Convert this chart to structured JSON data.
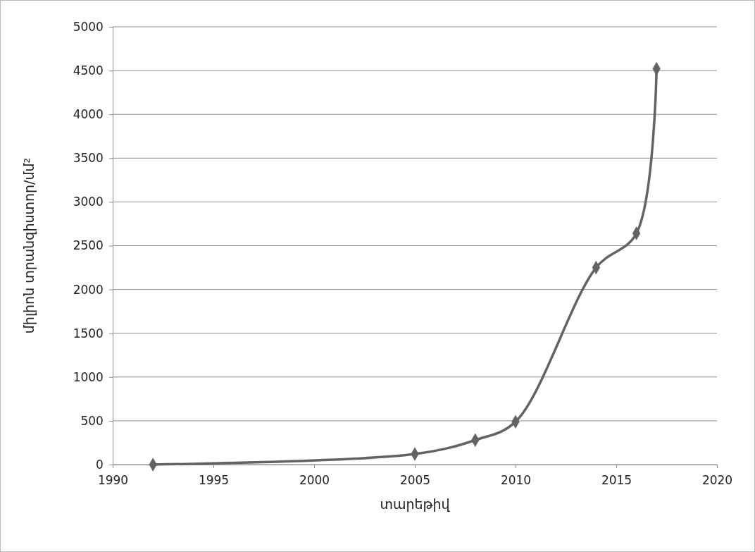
{
  "chart_data": {
    "type": "line",
    "xlabel": "տարեթիվ",
    "ylabel": "միլիոն տրանզիստոր/մմ²",
    "x": [
      1992,
      2005,
      2008,
      2010,
      2014,
      2016,
      2017
    ],
    "series": [
      {
        "color": "#636363",
        "values": [
          0,
          120,
          280,
          490,
          2250,
          2640,
          4520
        ]
      }
    ],
    "xlim": [
      1990,
      2020
    ],
    "xticks": [
      1990,
      1995,
      2000,
      2005,
      2010,
      2015,
      2020
    ],
    "ylim": [
      0,
      5000
    ],
    "yticks": [
      0,
      500,
      1000,
      1500,
      2000,
      2500,
      3000,
      3500,
      4000,
      4500,
      5000
    ],
    "grid": "y",
    "marker": "diamond",
    "line_style": "solid"
  }
}
